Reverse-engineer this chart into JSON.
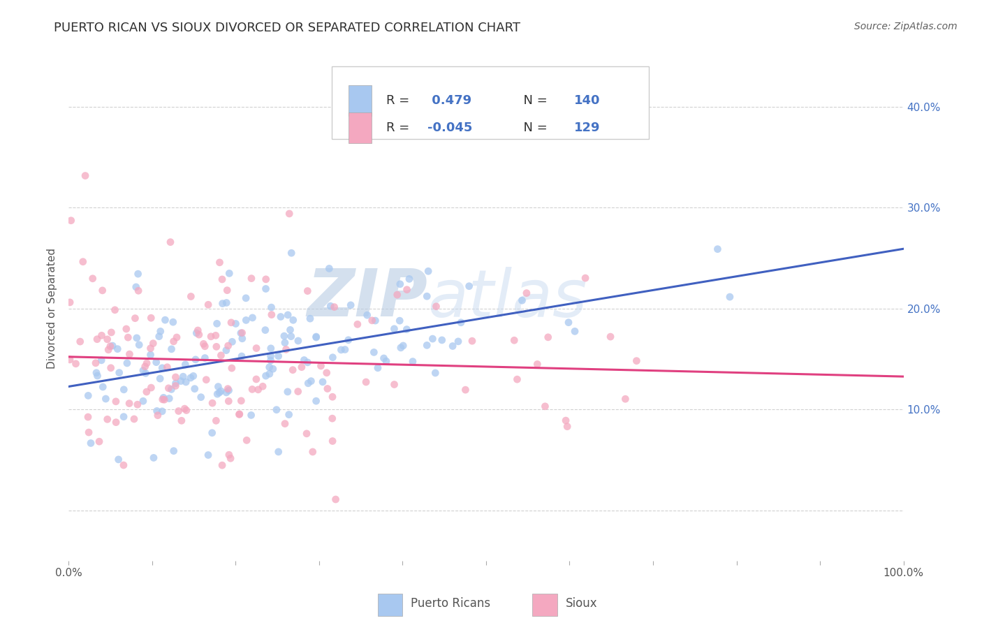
{
  "title": "PUERTO RICAN VS SIOUX DIVORCED OR SEPARATED CORRELATION CHART",
  "source": "Source: ZipAtlas.com",
  "ylabel": "Divorced or Separated",
  "xlim": [
    0.0,
    1.0
  ],
  "ylim": [
    -0.05,
    0.45
  ],
  "xticks": [
    0.0,
    0.1,
    0.2,
    0.3,
    0.4,
    0.5,
    0.6,
    0.7,
    0.8,
    0.9,
    1.0
  ],
  "xtick_labels": [
    "0.0%",
    "",
    "",
    "",
    "",
    "",
    "",
    "",
    "",
    "",
    "100.0%"
  ],
  "yticks": [
    0.0,
    0.1,
    0.2,
    0.3,
    0.4
  ],
  "ytick_labels_right": [
    "",
    "10.0%",
    "20.0%",
    "30.0%",
    "40.0%"
  ],
  "blue_R": 0.479,
  "blue_N": 140,
  "pink_R": -0.045,
  "pink_N": 129,
  "blue_color": "#a8c8f0",
  "pink_color": "#f4a8c0",
  "blue_line_color": "#4060c0",
  "pink_line_color": "#e04080",
  "watermark_zip": "ZIP",
  "watermark_atlas": "atlas",
  "legend_label_blue": "Puerto Ricans",
  "legend_label_pink": "Sioux",
  "title_color": "#303030",
  "source_color": "#606060",
  "right_axis_color": "#4472c4",
  "background_color": "#ffffff",
  "grid_color": "#cccccc",
  "seed_blue": 42,
  "seed_pink": 77
}
